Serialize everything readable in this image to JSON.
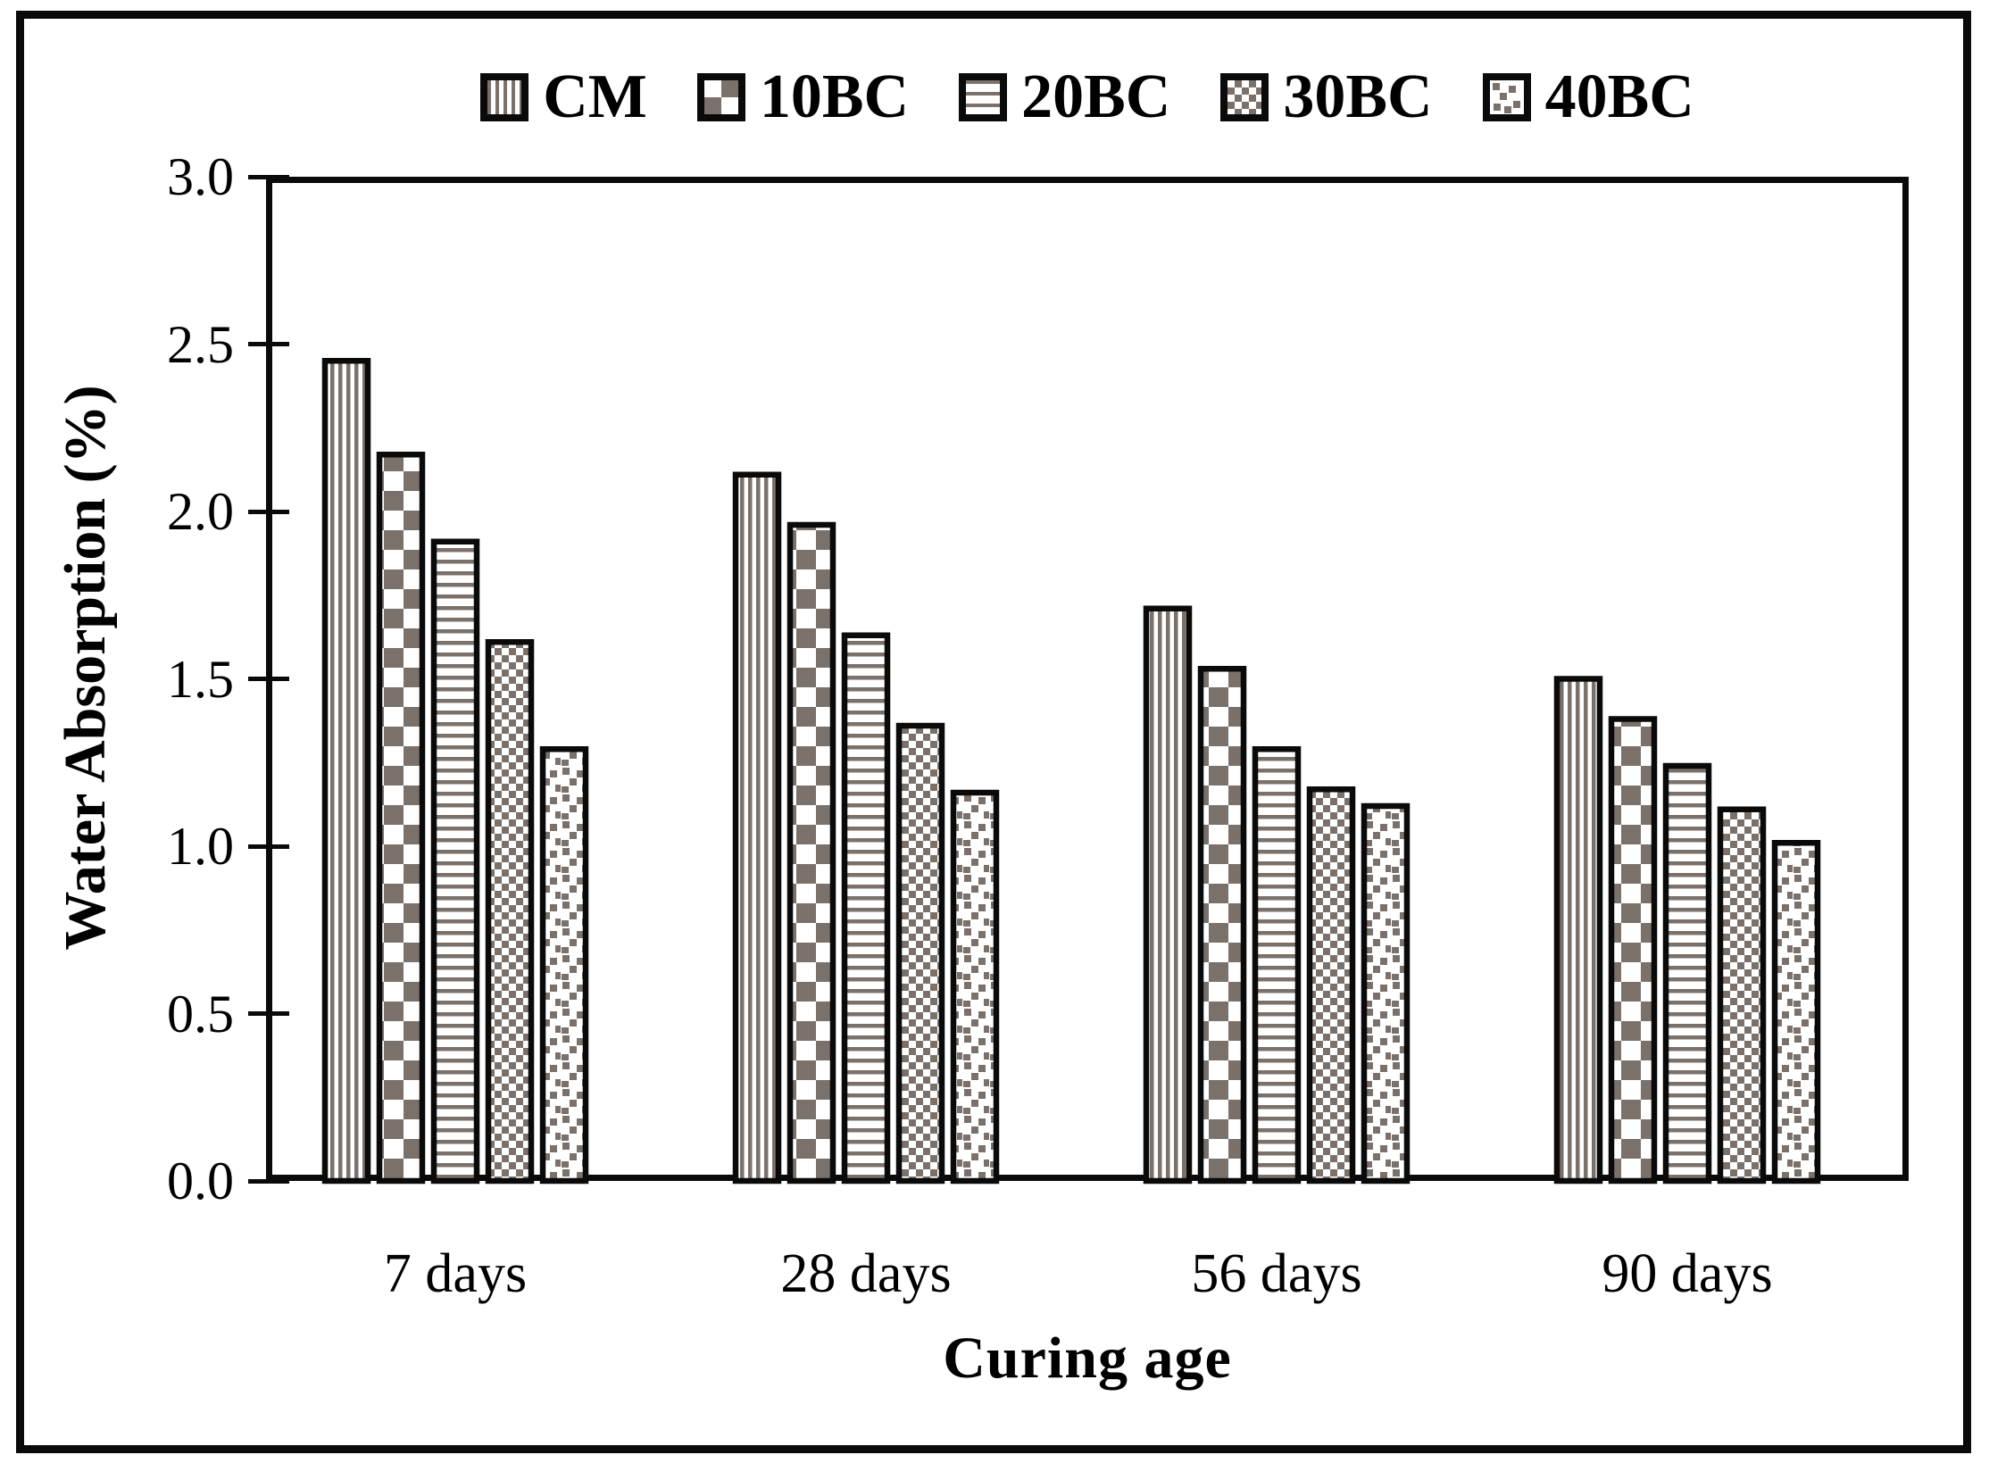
{
  "chart_data": {
    "type": "bar",
    "title": "",
    "xlabel": "Curing age",
    "ylabel": "Water Absorption (%)",
    "categories": [
      "7 days",
      "28 days",
      "56 days",
      "90 days"
    ],
    "series": [
      {
        "name": "CM",
        "pattern": "vertical-stripes",
        "values": [
          2.45,
          2.11,
          1.71,
          1.5
        ]
      },
      {
        "name": "10BC",
        "pattern": "checkerboard",
        "values": [
          2.17,
          1.96,
          1.53,
          1.38
        ]
      },
      {
        "name": "20BC",
        "pattern": "horizontal-stripes",
        "values": [
          1.91,
          1.63,
          1.29,
          1.24
        ]
      },
      {
        "name": "30BC",
        "pattern": "fine-checker",
        "values": [
          1.61,
          1.36,
          1.17,
          1.11
        ]
      },
      {
        "name": "40BC",
        "pattern": "confetti",
        "values": [
          1.29,
          1.16,
          1.12,
          1.01
        ]
      }
    ],
    "ylim": [
      0.0,
      3.0
    ],
    "ytick_step": 0.5,
    "ytick_labels": [
      "3.0",
      "2.5",
      "2.0",
      "1.5",
      "1.0",
      "0.5",
      "0.0"
    ],
    "grid": false,
    "legend_position": "top-center",
    "colors": {
      "pattern_foreground": "#7a716b",
      "pattern_background": "#ffffff",
      "bar_outline": "#0a0a0a",
      "axis": "#0a0a0a",
      "text": "#000000"
    }
  }
}
